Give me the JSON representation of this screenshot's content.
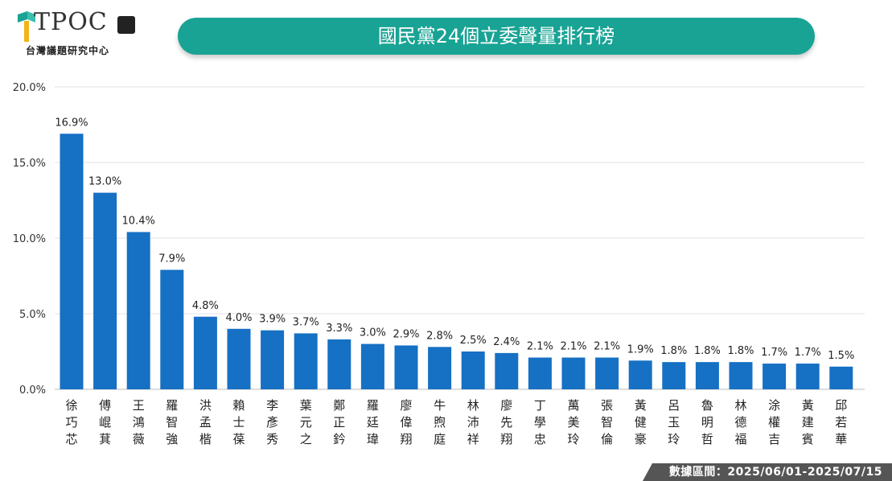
{
  "header": {
    "logo_text": "TPOC",
    "logo_subtitle": "台灣議題研究中心",
    "title": "國民黨24個立委聲量排行榜"
  },
  "footer": {
    "date_range": "數據區間：2025/06/01-2025/07/15"
  },
  "colors": {
    "bar": "#1670c4",
    "title_bar": "#19a394",
    "grid": "#e3e3e3"
  },
  "chart_data": {
    "type": "bar",
    "title": "國民黨24個立委聲量排行榜",
    "xlabel": "",
    "ylabel": "",
    "ylim": [
      0,
      20
    ],
    "yticks": [
      "0.0%",
      "5.0%",
      "10.0%",
      "15.0%",
      "20.0%"
    ],
    "grid": true,
    "categories": [
      "徐巧芯",
      "傅崐萁",
      "王鴻薇",
      "羅智強",
      "洪孟楷",
      "賴士葆",
      "李彥秀",
      "葉元之",
      "鄭正鈐",
      "羅廷瑋",
      "廖偉翔",
      "牛煦庭",
      "林沛祥",
      "廖先翔",
      "丁學忠",
      "萬美玲",
      "張智倫",
      "黃健豪",
      "呂玉玲",
      "魯明哲",
      "林德福",
      "涂權吉",
      "黃建賓",
      "邱若華"
    ],
    "values": [
      16.9,
      13.0,
      10.4,
      7.9,
      4.8,
      4.0,
      3.9,
      3.7,
      3.3,
      3.0,
      2.9,
      2.8,
      2.5,
      2.4,
      2.1,
      2.1,
      2.1,
      1.9,
      1.8,
      1.8,
      1.8,
      1.7,
      1.7,
      1.5
    ],
    "data_labels": [
      "16.9%",
      "13.0%",
      "10.4%",
      "7.9%",
      "4.8%",
      "4.0%",
      "3.9%",
      "3.7%",
      "3.3%",
      "3.0%",
      "2.9%",
      "2.8%",
      "2.5%",
      "2.4%",
      "2.1%",
      "2.1%",
      "2.1%",
      "1.9%",
      "1.8%",
      "1.8%",
      "1.8%",
      "1.7%",
      "1.7%",
      "1.5%"
    ]
  }
}
